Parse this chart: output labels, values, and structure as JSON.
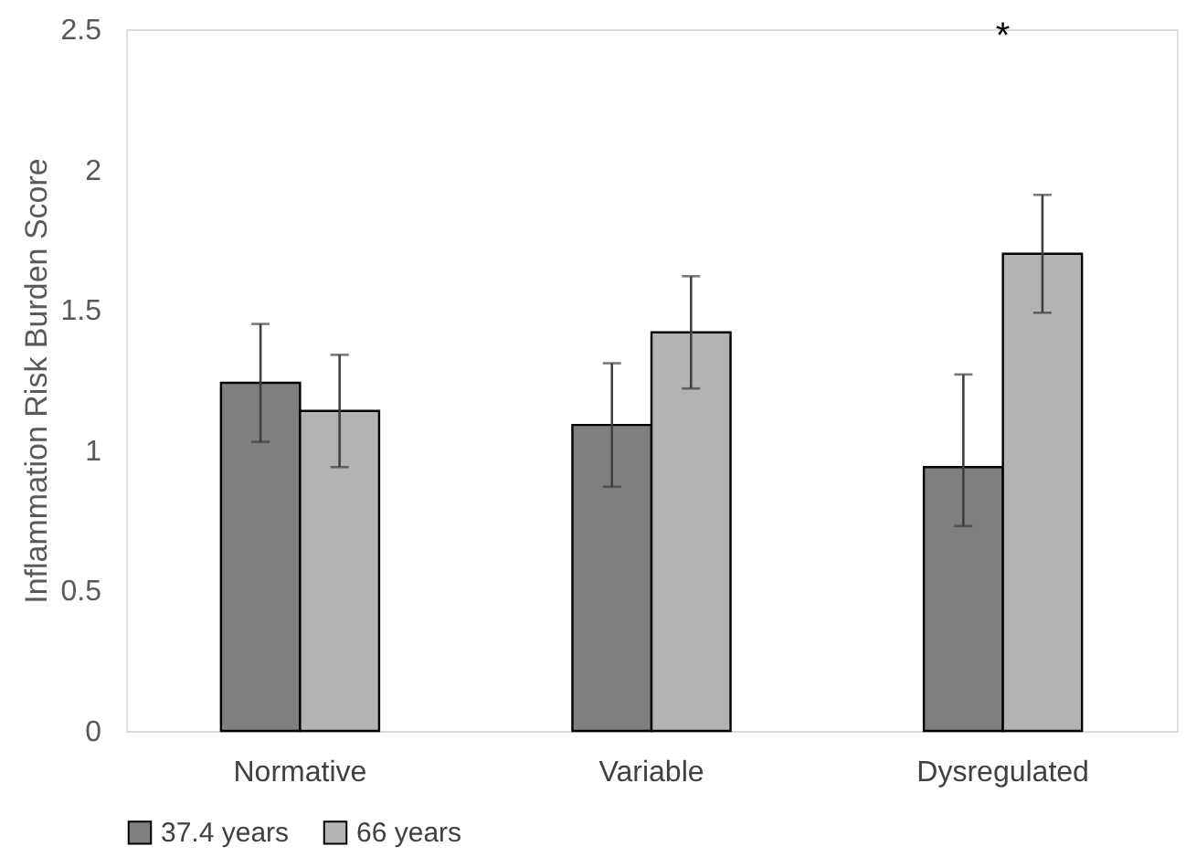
{
  "chart_data": {
    "type": "bar",
    "ylabel": "Inflammation Risk Burden Score",
    "categories": [
      "Normative",
      "Variable",
      "Dysregulated"
    ],
    "series": [
      {
        "name": "37.4 years",
        "color": "#7f7f7f",
        "values": [
          1.24,
          1.09,
          0.94
        ],
        "errors": [
          0.21,
          0.22,
          [
            0.73,
            1.27
          ]
        ]
      },
      {
        "name": "66 years",
        "color": "#b3b3b3",
        "values": [
          1.14,
          1.42,
          1.7
        ],
        "errors": [
          0.2,
          0.2,
          0.21
        ]
      }
    ],
    "ylim": [
      0,
      2.5
    ],
    "yticks": [
      0,
      0.5,
      1,
      1.5,
      2,
      2.5
    ],
    "grid": false,
    "legend": "bottom",
    "annotations": [
      "*"
    ]
  }
}
